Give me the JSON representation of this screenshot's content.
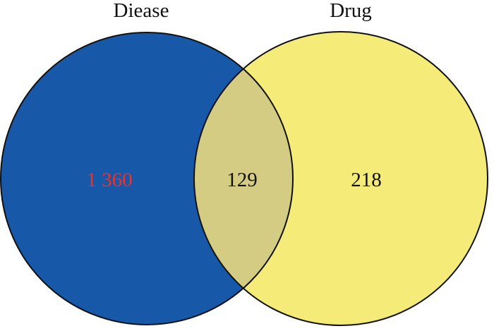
{
  "sets": [
    {
      "name": "Diease",
      "only_count": "1 360",
      "fill": "#1758A8"
    },
    {
      "name": "Drug",
      "only_count": "218",
      "fill": "#F5EB78"
    }
  ],
  "intersection": {
    "count": "129",
    "fill": "#D5CC84"
  },
  "colors": {
    "outline": "#111111",
    "left_count_text": "#E8332E",
    "text": "#111111",
    "background": "#FFFFFF"
  }
}
